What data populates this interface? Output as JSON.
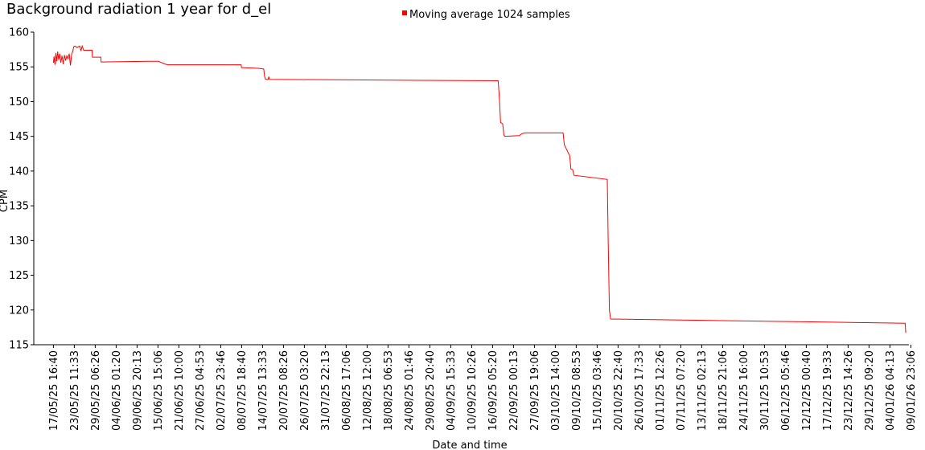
{
  "chart_data": {
    "type": "line",
    "title": "Background radiation 1 year for d_el",
    "xlabel": "Date and time",
    "ylabel": "CPM",
    "ylim": [
      115,
      160
    ],
    "y_ticks": [
      115,
      120,
      125,
      130,
      135,
      140,
      145,
      150,
      155,
      160
    ],
    "x_tick_labels": [
      "17/05/25 16:40",
      "23/05/25 11:33",
      "29/05/25 06:26",
      "04/06/25 01:20",
      "09/06/25 20:13",
      "15/06/25 15:06",
      "21/06/25 10:00",
      "27/06/25 04:53",
      "02/07/25 23:46",
      "08/07/25 18:40",
      "14/07/25 13:33",
      "20/07/25 08:26",
      "26/07/25 03:20",
      "31/07/25 22:13",
      "06/08/25 17:06",
      "12/08/25 12:00",
      "18/08/25 06:53",
      "24/08/25 01:46",
      "29/08/25 20:40",
      "04/09/25 15:33",
      "10/09/25 10:26",
      "16/09/25 05:20",
      "22/09/25 00:13",
      "27/09/25 19:06",
      "03/10/25 14:00",
      "09/10/25 08:53",
      "15/10/25 03:46",
      "20/10/25 22:40",
      "26/10/25 17:33",
      "01/11/25 12:26",
      "07/11/25 07:20",
      "13/11/25 02:13",
      "18/11/25 21:06",
      "24/11/25 16:00",
      "30/11/25 10:53",
      "06/12/25 05:46",
      "12/12/25 00:40",
      "17/12/25 19:33",
      "23/12/25 14:26",
      "29/12/25 09:20",
      "04/01/26 04:13",
      "09/01/26 23:06"
    ],
    "grid": false,
    "legend_position": "top-center",
    "series": [
      {
        "name": "Moving average 1024 samples",
        "color": "#ff0000",
        "points": [
          [
            "2025-05-17 16:40",
            155.6
          ],
          [
            "2025-05-17 21:00",
            156.5
          ],
          [
            "2025-05-18 03:00",
            155.3
          ],
          [
            "2025-05-18 09:00",
            157.0
          ],
          [
            "2025-05-18 15:00",
            155.8
          ],
          [
            "2025-05-18 21:00",
            157.2
          ],
          [
            "2025-05-19 04:00",
            156.0
          ],
          [
            "2025-05-19 11:00",
            156.9
          ],
          [
            "2025-05-19 18:00",
            155.6
          ],
          [
            "2025-05-20 02:00",
            156.6
          ],
          [
            "2025-05-20 10:00",
            155.4
          ],
          [
            "2025-05-20 18:00",
            156.7
          ],
          [
            "2025-05-21 02:00",
            155.9
          ],
          [
            "2025-05-21 10:00",
            156.6
          ],
          [
            "2025-05-21 18:00",
            156.2
          ],
          [
            "2025-05-22 02:00",
            156.9
          ],
          [
            "2025-05-22 10:00",
            155.2
          ],
          [
            "2025-05-22 18:00",
            156.8
          ],
          [
            "2025-05-23 02:00",
            157.3
          ],
          [
            "2025-05-23 08:00",
            157.9
          ],
          [
            "2025-05-23 16:00",
            158.0
          ],
          [
            "2025-05-24 06:00",
            157.8
          ],
          [
            "2025-05-25 00:00",
            158.0
          ],
          [
            "2025-05-25 08:00",
            157.3
          ],
          [
            "2025-05-25 16:00",
            158.0
          ],
          [
            "2025-05-26 02:00",
            157.4
          ],
          [
            "2025-05-28 10:00",
            157.4
          ],
          [
            "2025-05-28 12:00",
            156.4
          ],
          [
            "2025-05-30 20:00",
            156.4
          ],
          [
            "2025-05-30 22:00",
            155.7
          ],
          [
            "2025-06-13 00:00",
            155.8
          ],
          [
            "2025-06-15 20:00",
            155.8
          ],
          [
            "2025-06-16 18:00",
            155.6
          ],
          [
            "2025-06-17 16:00",
            155.4
          ],
          [
            "2025-06-18 10:00",
            155.3
          ],
          [
            "2025-07-08 18:00",
            155.3
          ],
          [
            "2025-07-08 20:00",
            154.9
          ],
          [
            "2025-07-13 12:00",
            154.8
          ],
          [
            "2025-07-15 00:00",
            154.7
          ],
          [
            "2025-07-15 06:00",
            153.6
          ],
          [
            "2025-07-15 12:00",
            153.2
          ],
          [
            "2025-07-16 06:00",
            153.2
          ],
          [
            "2025-07-16 10:00",
            153.6
          ],
          [
            "2025-07-16 14:00",
            153.2
          ],
          [
            "2025-09-18 00:00",
            153.0
          ],
          [
            "2025-09-18 08:00",
            150.5
          ],
          [
            "2025-09-18 16:00",
            147.0
          ],
          [
            "2025-09-19 06:00",
            146.8
          ],
          [
            "2025-09-19 14:00",
            145.2
          ],
          [
            "2025-09-19 20:00",
            145.0
          ],
          [
            "2025-09-23 20:00",
            145.1
          ],
          [
            "2025-09-24 16:00",
            145.4
          ],
          [
            "2025-09-25 10:00",
            145.5
          ],
          [
            "2025-10-06 00:00",
            145.5
          ],
          [
            "2025-10-06 08:00",
            143.8
          ],
          [
            "2025-10-07 20:00",
            142.2
          ],
          [
            "2025-10-08 04:00",
            140.3
          ],
          [
            "2025-10-08 16:00",
            140.2
          ],
          [
            "2025-10-09 00:00",
            139.4
          ],
          [
            "2025-10-18 06:00",
            138.8
          ],
          [
            "2025-10-18 12:00",
            130.0
          ],
          [
            "2025-10-18 20:00",
            120.0
          ],
          [
            "2025-10-19 04:00",
            118.7
          ],
          [
            "2026-01-08 20:00",
            118.1
          ],
          [
            "2026-01-09 00:00",
            116.7
          ]
        ]
      }
    ]
  }
}
